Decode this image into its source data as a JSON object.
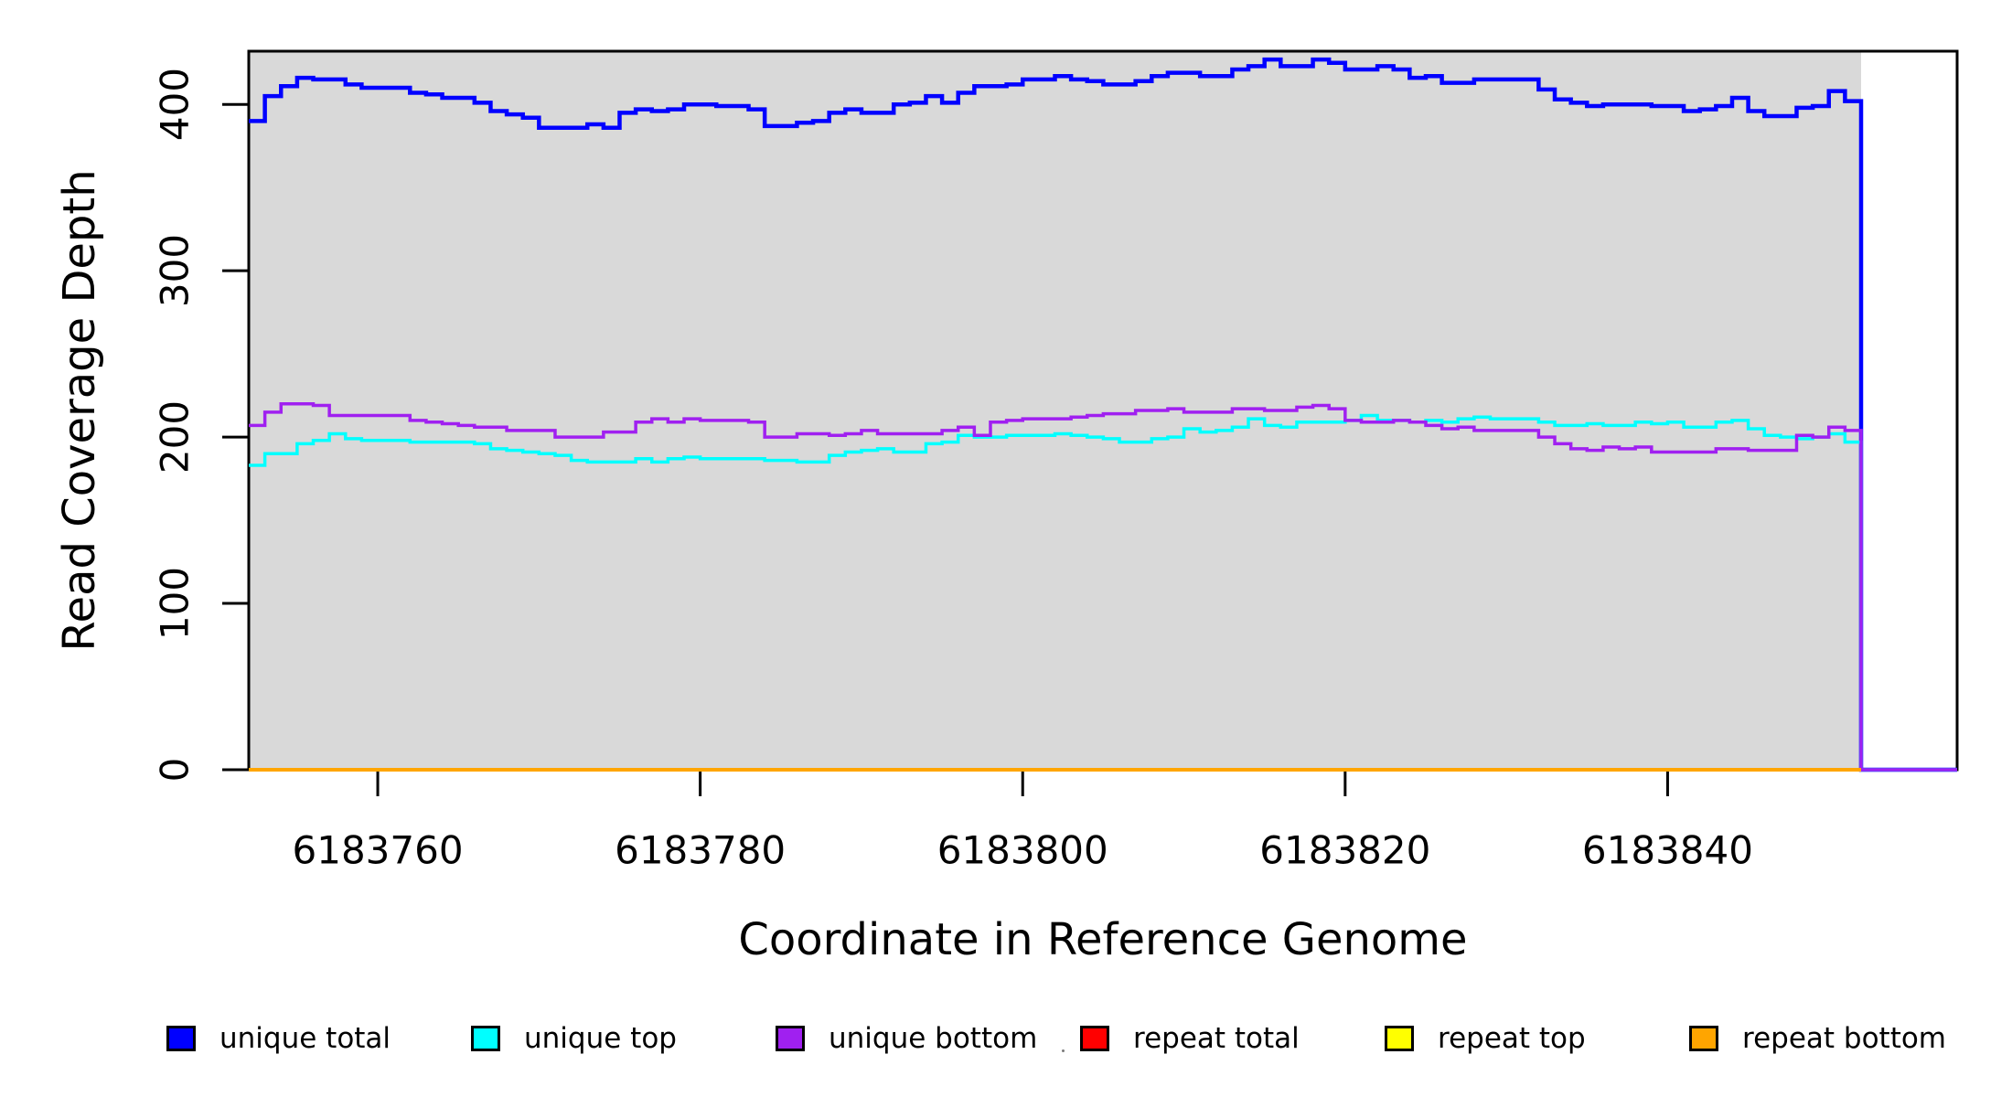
{
  "figure": {
    "x_axis_title": "Coordinate in Reference Genome",
    "y_axis_title": "Read Coverage Depth",
    "x_tick_labels": [
      "6183760",
      "6183780",
      "6183800",
      "6183820",
      "6183840"
    ],
    "y_tick_labels": [
      "0",
      "100",
      "200",
      "300",
      "400"
    ],
    "panel_background": "#d9d9d9",
    "box_color": "#000000"
  },
  "legend": [
    {
      "label": "unique total",
      "color": "#0000ff"
    },
    {
      "label": "unique top",
      "color": "#00ffff"
    },
    {
      "label": "unique bottom",
      "color": "#a020f0"
    },
    {
      "label": "repeat total",
      "color": "#ff0000"
    },
    {
      "label": "repeat top",
      "color": "#ffff00"
    },
    {
      "label": "repeat bottom",
      "color": "#ffa500"
    }
  ],
  "chart_data": {
    "type": "line",
    "subtype": "step",
    "title": "",
    "xlabel": "Coordinate in Reference Genome",
    "ylabel": "Read Coverage Depth",
    "x_start": 6183752,
    "x_step": 1,
    "n_points": 100,
    "x_data_end": 6183852,
    "xlim": [
      6183752,
      6183858
    ],
    "ylim": [
      0,
      432
    ],
    "x_ticks": [
      6183760,
      6183780,
      6183800,
      6183820,
      6183840
    ],
    "y_ticks": [
      0,
      100,
      200,
      300,
      400
    ],
    "grid": false,
    "legend_position": "bottom",
    "series": [
      {
        "name": "unique total",
        "color": "#0000ff",
        "width": 4.5,
        "extend_right": true,
        "values": [
          390,
          405,
          411,
          416,
          415,
          415,
          412,
          410,
          410,
          410,
          407,
          406,
          404,
          404,
          401,
          396,
          394,
          392,
          386,
          386,
          386,
          388,
          386,
          395,
          397,
          396,
          397,
          400,
          400,
          399,
          399,
          397,
          387,
          387,
          389,
          390,
          395,
          397,
          395,
          395,
          400,
          401,
          405,
          401,
          407,
          411,
          411,
          412,
          415,
          415,
          417,
          415,
          414,
          412,
          412,
          414,
          417,
          419,
          419,
          417,
          417,
          421,
          423,
          427,
          423,
          423,
          427,
          425,
          421,
          421,
          423,
          421,
          416,
          417,
          413,
          413,
          415,
          415,
          415,
          415,
          409,
          403,
          401,
          399,
          400,
          400,
          400,
          399,
          399,
          396,
          397,
          399,
          404,
          396,
          393,
          393,
          398,
          399,
          408,
          402
        ]
      },
      {
        "name": "unique top",
        "color": "#00ffff",
        "width": 3.5,
        "extend_right": true,
        "values": [
          183,
          190,
          190,
          196,
          198,
          202,
          199,
          198,
          198,
          198,
          197,
          197,
          197,
          197,
          196,
          193,
          192,
          191,
          190,
          189,
          186,
          185,
          185,
          185,
          187,
          185,
          187,
          188,
          187,
          187,
          187,
          187,
          186,
          186,
          185,
          185,
          189,
          191,
          192,
          193,
          191,
          191,
          196,
          197,
          201,
          200,
          200,
          201,
          201,
          201,
          202,
          201,
          200,
          199,
          197,
          197,
          199,
          200,
          205,
          203,
          204,
          206,
          211,
          207,
          206,
          209,
          209,
          209,
          210,
          213,
          210,
          210,
          209,
          210,
          209,
          211,
          212,
          211,
          211,
          211,
          209,
          207,
          207,
          208,
          207,
          207,
          209,
          208,
          209,
          206,
          206,
          209,
          210,
          205,
          201,
          200,
          199,
          200,
          202,
          197
        ]
      },
      {
        "name": "unique bottom",
        "color": "#a020f0",
        "width": 3.5,
        "extend_right": true,
        "values": [
          207,
          215,
          220,
          220,
          219,
          213,
          213,
          213,
          213,
          213,
          210,
          209,
          208,
          207,
          206,
          206,
          204,
          204,
          204,
          200,
          200,
          200,
          203,
          203,
          209,
          211,
          209,
          211,
          210,
          210,
          210,
          209,
          200,
          200,
          202,
          202,
          201,
          202,
          204,
          202,
          202,
          202,
          202,
          204,
          206,
          201,
          209,
          210,
          211,
          211,
          211,
          212,
          213,
          214,
          214,
          216,
          216,
          217,
          215,
          215,
          215,
          217,
          217,
          216,
          216,
          218,
          219,
          217,
          210,
          209,
          209,
          210,
          209,
          207,
          205,
          206,
          204,
          204,
          204,
          204,
          200,
          196,
          193,
          192,
          194,
          193,
          194,
          191,
          191,
          191,
          191,
          193,
          193,
          192,
          192,
          192,
          201,
          200,
          206,
          204
        ]
      },
      {
        "name": "repeat total",
        "color": "#ff0000",
        "width": 3.5,
        "extend_right": false,
        "constant": 0
      },
      {
        "name": "repeat top",
        "color": "#ffff00",
        "width": 3.5,
        "extend_right": false,
        "constant": 0
      },
      {
        "name": "repeat bottom",
        "color": "#ffa500",
        "width": 4,
        "extend_right": false,
        "constant": 0
      }
    ]
  }
}
